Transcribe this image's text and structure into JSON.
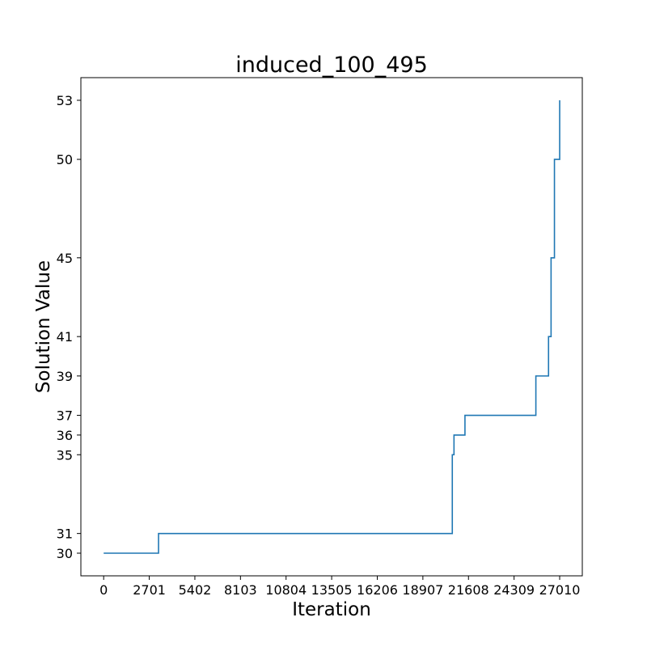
{
  "chart_data": {
    "type": "line",
    "title": "induced_100_495",
    "xlabel": "Iteration",
    "ylabel": "Solution Value",
    "xlim": [
      -1350,
      28350
    ],
    "ylim": [
      28.85,
      54.15
    ],
    "grid": false,
    "legend": "none",
    "step": "post",
    "x_ticks": [
      0,
      2701,
      5402,
      8103,
      10804,
      13505,
      16206,
      18907,
      21608,
      24309,
      27010
    ],
    "x_tick_labels": [
      "0",
      "2701",
      "5402",
      "8103",
      "10804",
      "13505",
      "16206",
      "18907",
      "21608",
      "24309",
      "27010"
    ],
    "y_ticks": [
      30,
      31,
      35,
      36,
      37,
      39,
      41,
      45,
      50,
      53
    ],
    "y_tick_labels": [
      "30",
      "31",
      "35",
      "36",
      "37",
      "39",
      "41",
      "45",
      "50",
      "53"
    ],
    "series": [
      {
        "color": "#1f77b4",
        "x": [
          0,
          3250,
          20650,
          20750,
          21400,
          25600,
          26350,
          26500,
          26700,
          27010
        ],
        "y": [
          30,
          31,
          35,
          36,
          37,
          39,
          41,
          45,
          50,
          53
        ]
      }
    ]
  }
}
